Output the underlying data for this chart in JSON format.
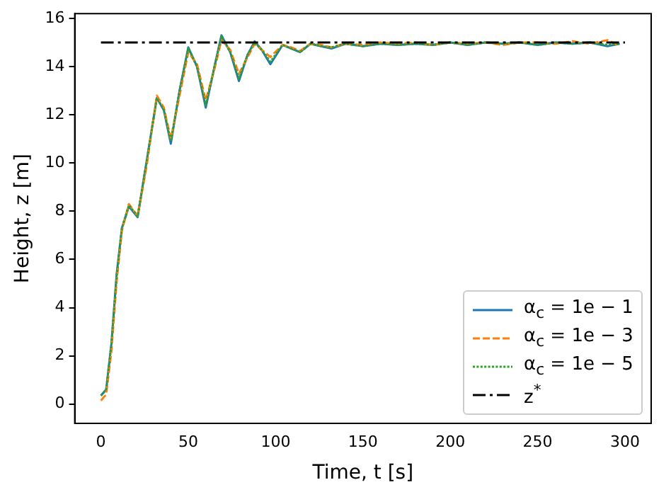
{
  "chart_data": {
    "type": "line",
    "xlabel": "Time, t [s]",
    "ylabel": "Height, z [m]",
    "x": [
      0,
      3,
      6,
      9,
      12,
      16,
      21,
      26,
      32,
      36,
      40,
      45,
      50,
      55,
      60,
      65,
      69,
      74,
      79,
      84,
      88,
      92,
      97,
      104,
      109,
      114,
      120,
      126,
      132,
      140,
      150,
      160,
      170,
      180,
      190,
      200,
      210,
      220,
      230,
      240,
      250,
      260,
      270,
      280,
      290,
      297
    ],
    "series": [
      {
        "name": "α$_{c}$ = 1e − 1",
        "color": "#1f77b4",
        "line_style": "solid",
        "values": [
          0.35,
          0.6,
          2.5,
          5.4,
          7.3,
          8.2,
          7.75,
          10,
          12.7,
          12.2,
          10.8,
          13,
          14.8,
          14,
          12.3,
          14,
          15.3,
          14.6,
          13.4,
          14.5,
          15.05,
          14.7,
          14.1,
          14.9,
          14.75,
          14.6,
          14.95,
          14.85,
          14.75,
          14.95,
          14.85,
          14.95,
          14.9,
          14.95,
          14.9,
          15,
          14.9,
          15,
          14.95,
          15,
          14.9,
          15,
          14.95,
          15,
          14.85,
          14.95
        ]
      },
      {
        "name": "α$_{c}$ = 1e − 3",
        "color": "#ff7f0e",
        "line_style": "dashed",
        "values": [
          0.15,
          0.4,
          2.2,
          5.1,
          7.2,
          8.3,
          7.8,
          9.8,
          12.8,
          12.3,
          11,
          12.8,
          14.6,
          14.1,
          12.6,
          13.9,
          15.1,
          14.7,
          13.7,
          14.4,
          14.95,
          14.7,
          14.4,
          14.9,
          14.8,
          14.65,
          14.95,
          14.9,
          14.8,
          14.95,
          14.9,
          15,
          14.95,
          15,
          14.9,
          15,
          14.95,
          15,
          14.9,
          15,
          15,
          14.95,
          15.05,
          14.95,
          15.1,
          14.85
        ]
      },
      {
        "name": "α$_{c}$ = 1e − 5",
        "color": "#2ca02c",
        "line_style": "dotted",
        "values": [
          0.35,
          0.6,
          2.5,
          5.3,
          7.3,
          8.25,
          7.8,
          10,
          12.7,
          12.2,
          10.9,
          13,
          14.75,
          14,
          12.4,
          14,
          15.25,
          14.6,
          13.5,
          14.5,
          15,
          14.7,
          14.2,
          14.9,
          14.75,
          14.6,
          14.95,
          14.85,
          14.8,
          14.95,
          14.85,
          14.95,
          14.9,
          14.95,
          14.9,
          15,
          14.9,
          15,
          14.95,
          15,
          14.9,
          15,
          14.95,
          15,
          14.9,
          14.95
        ]
      },
      {
        "name": "z$^{*}$",
        "color": "#000000",
        "line_style": "dashdot",
        "x": [
          0,
          300
        ],
        "values": [
          15,
          15
        ]
      }
    ],
    "xlim": [
      -15,
      315
    ],
    "xticks": [
      0,
      50,
      100,
      150,
      200,
      250,
      300
    ],
    "ylim": [
      -0.8,
      16.2
    ],
    "yticks": [
      0,
      2,
      4,
      6,
      8,
      10,
      12,
      14,
      16
    ],
    "grid": false,
    "legend": "bottom right",
    "marker": "none"
  }
}
